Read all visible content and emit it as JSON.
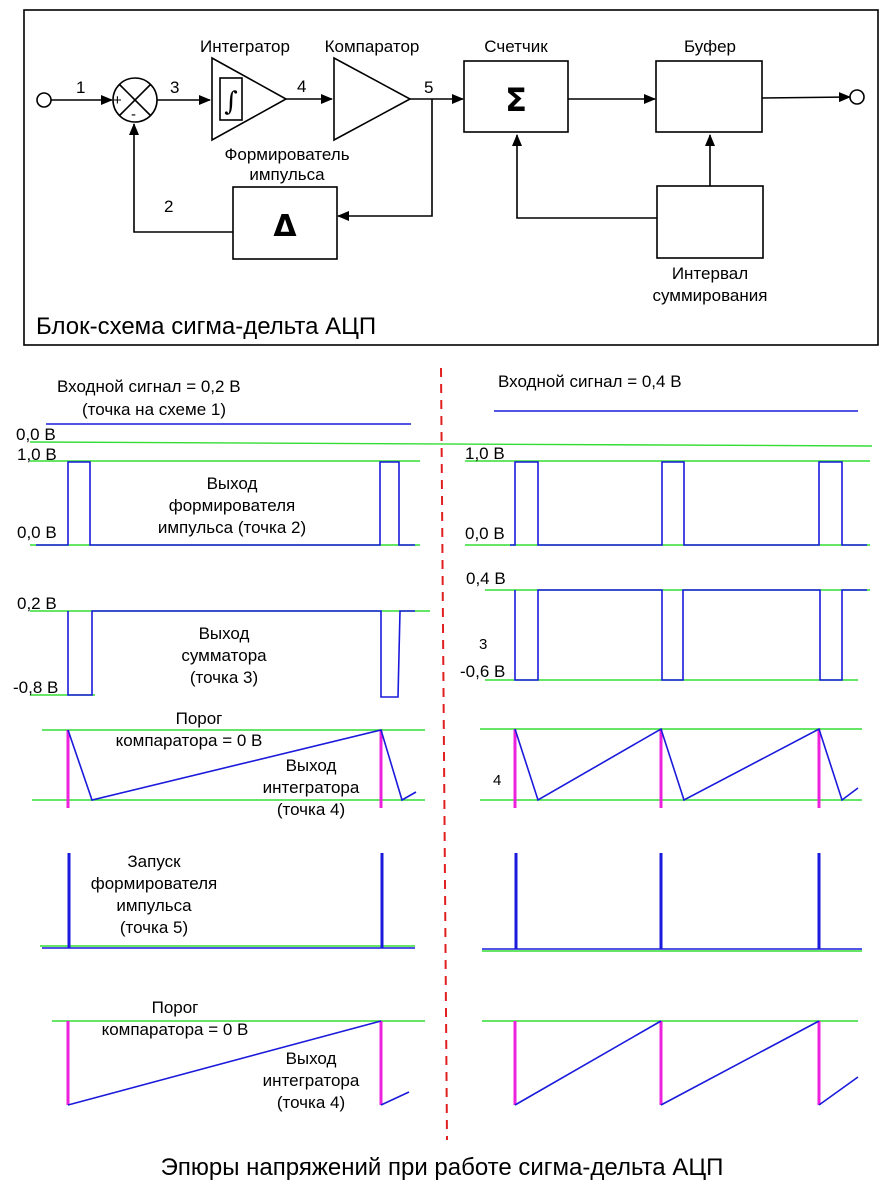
{
  "block_diagram": {
    "caption": "Блок-схема сигма-дельта АЦП",
    "blocks": {
      "integrator": "Интегратор",
      "integrator_symbol": "∫",
      "comparator": "Компаратор",
      "counter": "Счетчик",
      "counter_symbol": "Σ",
      "buffer": "Буфер",
      "pulse_former": "Формирователь импульса",
      "pulse_former_line1": "Формирователь",
      "pulse_former_line2": "импульса",
      "pulse_former_symbol": "Δ",
      "interval": "Интервал суммирования",
      "interval_line1": "Интервал",
      "interval_line2": "суммирования"
    },
    "summer_signs": {
      "plus": "+",
      "minus": "-"
    },
    "node_labels": [
      "1",
      "2",
      "3",
      "4",
      "5"
    ]
  },
  "waveforms": {
    "left": {
      "input_label_line1": "Входной сигнал = 0,2 В",
      "input_label_line2": "(точка на схеме 1)",
      "pulse_former": {
        "level_high": "1,0 В",
        "level_low": "0,0 В",
        "label": [
          "Выход",
          "формирователя",
          "импульса (точка 2)"
        ]
      },
      "adder": {
        "level_high": "0,2 В",
        "level_low": "-0,8 В",
        "label": [
          "Выход",
          "сумматора",
          "(точка 3)"
        ]
      },
      "integrator_1": {
        "threshold": [
          "Порог",
          "компаратора = 0 В"
        ],
        "label": [
          "Выход",
          "интегратора",
          "(точка 4)"
        ]
      },
      "trigger": {
        "label": [
          "Запуск",
          "формирователя",
          "импульса",
          "(точка 5)"
        ]
      },
      "integrator_2": {
        "threshold": [
          "Порог",
          "компаратора = 0 В"
        ],
        "label": [
          "Выход",
          "интегратора",
          "(точка 4)"
        ]
      }
    },
    "right": {
      "input_label": "Входной сигнал = 0,4 В",
      "pulse_former": {
        "level_high": "1,0 В",
        "level_low": "0,0 В"
      },
      "adder": {
        "level_high": "0,4 В",
        "level_low": "-0,6 В",
        "marker": "3"
      },
      "integrator_1": {
        "marker": "4"
      }
    },
    "shared_zero": "0,0 В"
  },
  "caption_bottom": "Эпюры напряжений при работе сигма-дельта АЦП",
  "colors": {
    "grid": "#33dd33",
    "signal": "#1a1adc",
    "discharge": "#ee22dd",
    "divider": "#e02020"
  }
}
